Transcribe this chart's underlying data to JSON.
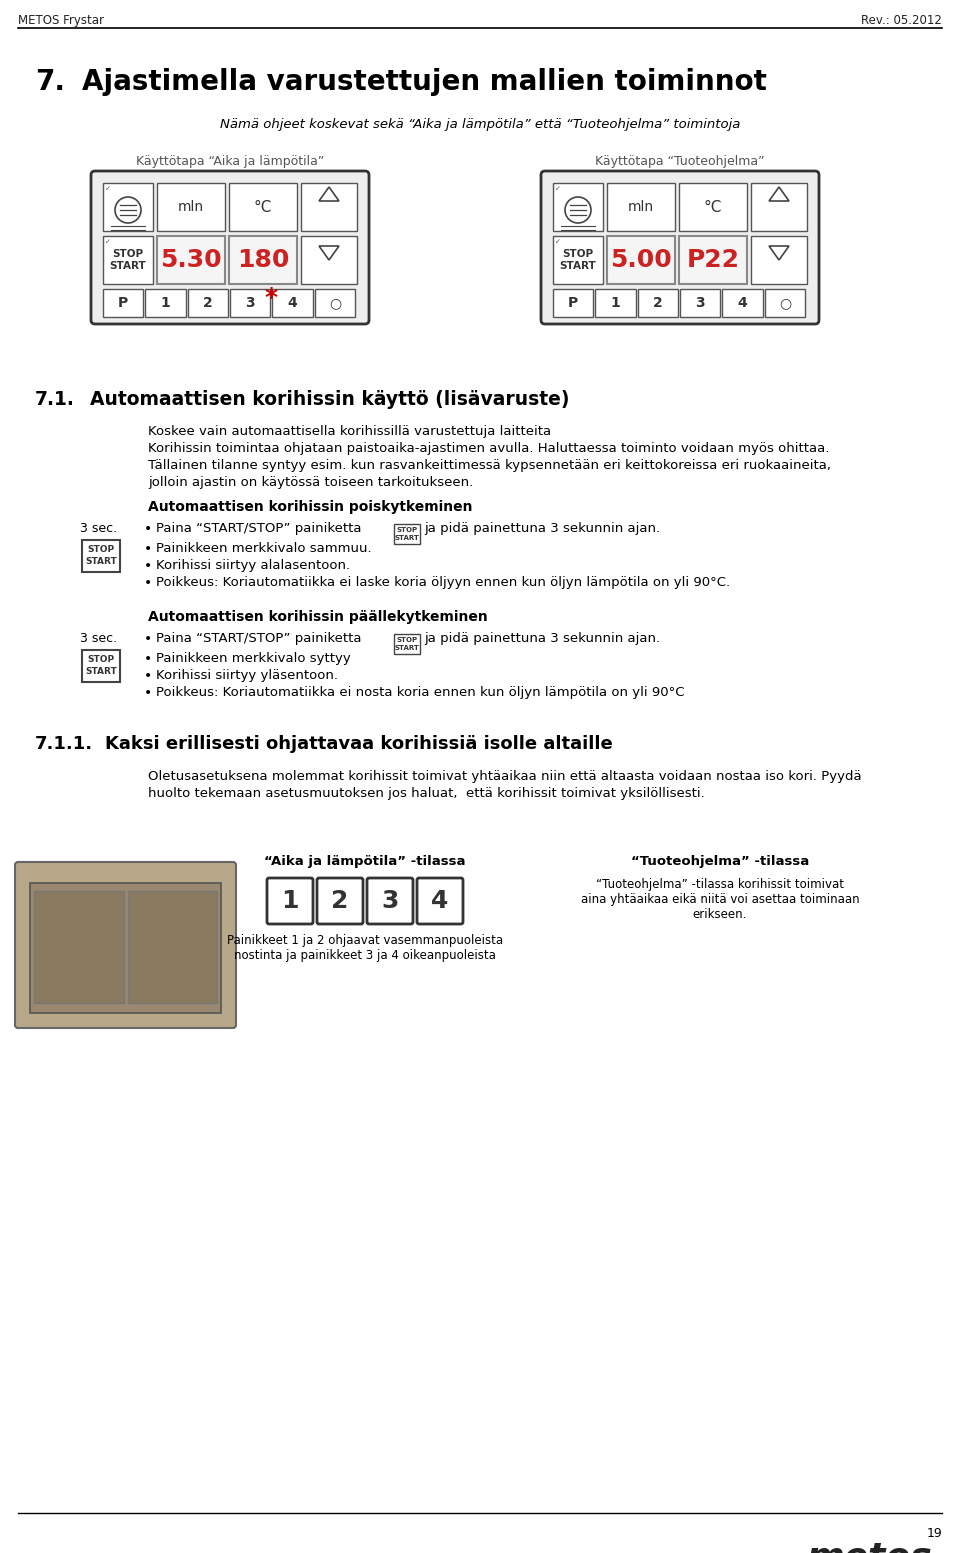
{
  "page_header_left": "METOS Frystar",
  "page_header_right": "Rev.: 05.2012",
  "page_number": "19",
  "chapter_number": "7.",
  "chapter_title": "Ajastimella varustettujen mallien toiminnot",
  "chapter_subtitle": "Nämä ohjeet koskevat sekä “Aika ja lämpötila” että “Tuoteohjelma” toimintoja",
  "panel_left_label": "Käyttötapa “Aika ja lämpötila”",
  "panel_right_label": "Käyttötapa “Tuoteohjelma”",
  "panel_left_display1": "5.30",
  "panel_left_display2": "180",
  "panel_right_display1": "5.00",
  "panel_right_display2": "P22",
  "section_71_number": "7.1.",
  "section_71_title": "Automaattisen korihissin käyttö (lisävaruste)",
  "section_71_para1": "Koskee vain automaattisella korihissillä varustettuja laitteita",
  "section_71_para2": "Korihissin toimintaa ohjataan paistoaika-ajastimen avulla. Haluttaessa toiminto voidaan myös ohittaa.",
  "section_71_para3": "Tällainen tilanne syntyy esim. kun rasvankeittimessä kypsennetään eri keittokoreissa eri ruokaaineita,",
  "section_71_para4": "jolloin ajastin on käytössä toiseen tarkoitukseen.",
  "subsec_off_title": "Automaattisen korihissin poiskytkeminen",
  "subsec_off_3sec": "3 sec.",
  "subsec_off_bullet2": "Painikkeen merkkivalo sammuu.",
  "subsec_off_bullet3": "Korihissi siirtyy alalasentoon.",
  "subsec_off_bullet4": "Poikkeus: Koriautomatiikka ei laske koria öljyyn ennen kun öljyn lämpötila on yli 90°C.",
  "subsec_on_title": "Automaattisen korihissin päällekytkeminen",
  "subsec_on_3sec": "3 sec.",
  "subsec_on_bullet2": "Painikkeen merkkivalo syttyy",
  "subsec_on_bullet3": "Korihissi siirtyy yläsentoon.",
  "subsec_on_bullet4": "Poikkeus: Koriautomatiikka ei nosta koria ennen kun öljyn lämpötila on yli 90°C",
  "section_711_number": "7.1.1.",
  "section_711_title": "Kaksi erillisesti ohjattavaa korihissiä isolle altaille",
  "section_711_para1": "Oletusasetuksena molemmat korihissit toimivat yhtäaikaa niin että altaasta voidaan nostaa iso kori. Pyydä",
  "section_711_para2": "huolto tekemaan asetusmuutoksen jos haluat,  että korihissit toimivat yksilöllisesti.",
  "bottom_left_caption": "“Aika ja lämpötila” -tilassa",
  "bottom_right_caption_bold": "“Tuoteohjelma” -tilassa",
  "bottom_right_line1": "“Tuoteohjelma” -tilassa korihissit toimivat",
  "bottom_right_line2": "aina yhtäaikaa eikä niitä voi asettaa toiminaan",
  "bottom_right_line3": "erikseen.",
  "bottom_btn_caption1": "Painikkeet 1 ja 2 ohjaavat vasemmanpuoleista",
  "bottom_btn_caption2": "nostinta ja painikkeet 3 ja 4 oikeanpuoleista",
  "metos_logo_text": "metos",
  "bg_color": "#ffffff",
  "text_color": "#000000",
  "display_red": "#cc2222",
  "panel_border": "#444444",
  "panel_bg": "#f8f8f8",
  "display_bg": "#111111"
}
